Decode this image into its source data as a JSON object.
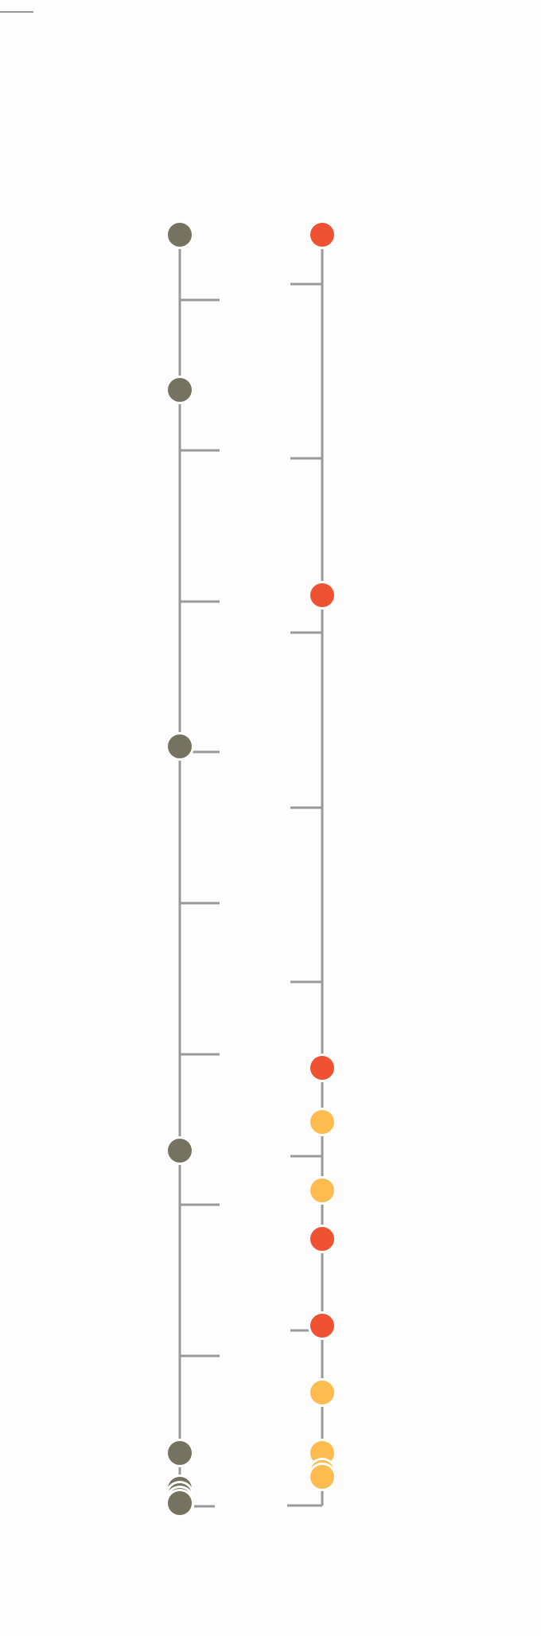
{
  "colors": {
    "background": "#fdfdfd",
    "axis": "#999999",
    "left_dot": "#75725f",
    "red_dot": "#ee5232",
    "yellow_dot": "#fdbb50",
    "dot_stroke": "#ffffff"
  },
  "timelines": [
    {
      "id": "left",
      "ticks": 9,
      "tick_side": "right",
      "events": [
        {
          "color": "left_dot"
        },
        {
          "color": "left_dot"
        },
        {
          "color": "left_dot"
        },
        {
          "color": "left_dot"
        },
        {
          "color": "left_dot"
        },
        {
          "color": "left_dot"
        },
        {
          "color": "left_dot"
        },
        {
          "color": "left_dot"
        },
        {
          "color": "left_dot"
        }
      ]
    },
    {
      "id": "right",
      "ticks": 8,
      "tick_side": "left",
      "events": [
        {
          "color": "red_dot"
        },
        {
          "color": "red_dot"
        },
        {
          "color": "red_dot"
        },
        {
          "color": "yellow_dot"
        },
        {
          "color": "yellow_dot"
        },
        {
          "color": "red_dot"
        },
        {
          "color": "red_dot"
        },
        {
          "color": "yellow_dot"
        },
        {
          "color": "yellow_dot"
        },
        {
          "color": "yellow_dot"
        },
        {
          "color": "yellow_dot"
        }
      ]
    }
  ]
}
